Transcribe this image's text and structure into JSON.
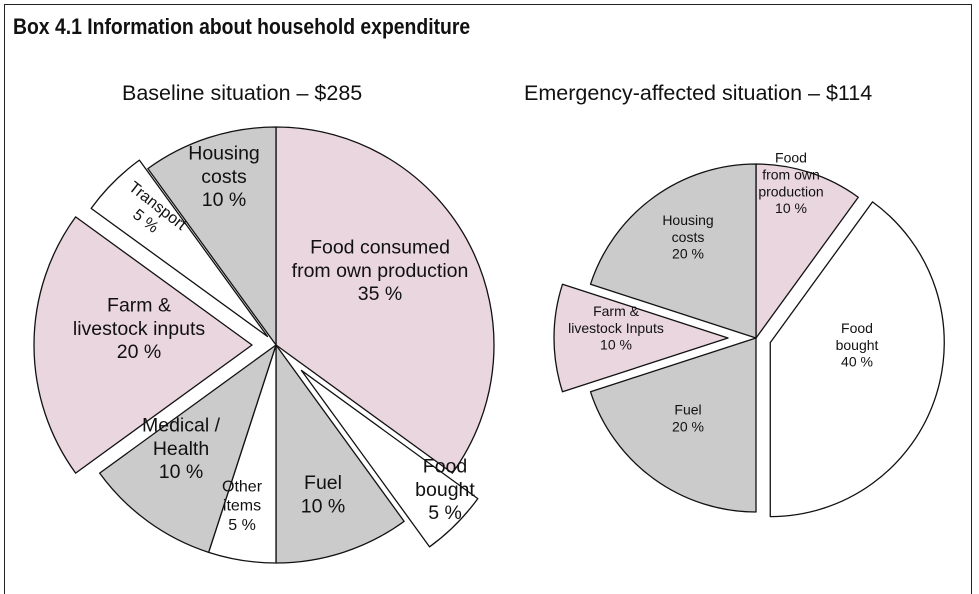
{
  "box_title": "Box 4.1 Information about household expenditure",
  "colors": {
    "pink": "#ead6de",
    "grey": "#cbcbcb",
    "white": "#ffffff",
    "stroke": "#111111"
  },
  "chart_data": [
    {
      "type": "pie",
      "title": "Baseline situation – $285",
      "slices": [
        {
          "label_lines": [
            "Food consumed",
            "from own production",
            "35 %"
          ],
          "value": 35,
          "color": "pink"
        },
        {
          "label_lines": [
            "Food",
            "bought",
            "5 %"
          ],
          "value": 5,
          "color": "white"
        },
        {
          "label_lines": [
            "Fuel",
            "10 %"
          ],
          "value": 10,
          "color": "grey"
        },
        {
          "label_lines": [
            "Other",
            "items",
            "5 %"
          ],
          "value": 5,
          "color": "white"
        },
        {
          "label_lines": [
            "Medical /",
            "Health",
            "10 %"
          ],
          "value": 10,
          "color": "grey"
        },
        {
          "label_lines": [
            "Farm &",
            "livestock inputs",
            "20 %"
          ],
          "value": 20,
          "color": "pink"
        },
        {
          "label_lines": [
            "Transport",
            "5 %"
          ],
          "value": 5,
          "color": "white"
        },
        {
          "label_lines": [
            "Housing",
            "costs",
            "10 %"
          ],
          "value": 10,
          "color": "grey"
        }
      ]
    },
    {
      "type": "pie",
      "title": "Emergency-affected situation – $114",
      "slices": [
        {
          "label_lines": [
            "Food",
            "from own",
            "production",
            "10 %"
          ],
          "value": 10,
          "color": "pink"
        },
        {
          "label_lines": [
            "Food",
            "bought",
            "40 %"
          ],
          "value": 40,
          "color": "white"
        },
        {
          "label_lines": [
            "Fuel",
            "20 %"
          ],
          "value": 20,
          "color": "grey"
        },
        {
          "label_lines": [
            "Farm &",
            "livestock Inputs",
            "10 %"
          ],
          "value": 10,
          "color": "pink"
        },
        {
          "label_lines": [
            "Housing",
            "costs",
            "20 %"
          ],
          "value": 20,
          "color": "grey"
        }
      ]
    }
  ]
}
